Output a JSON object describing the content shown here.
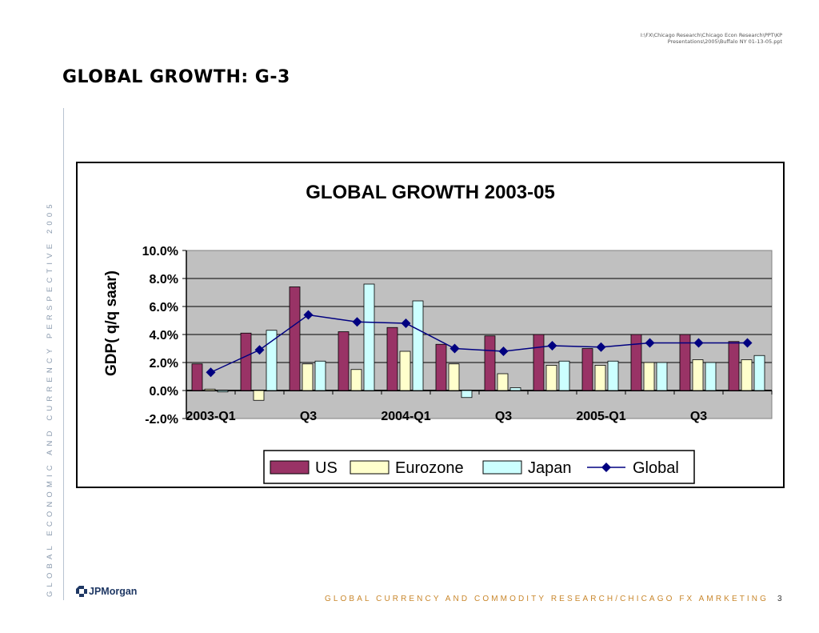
{
  "header": {
    "file_path": "I:\\FX\\Chicago Research\\Chicago Econ Research\\PPT\\KP Presentations\\2005\\Buffalo NY 01-13-05.ppt",
    "slide_title": "GLOBAL GROWTH: G-3"
  },
  "sidebar": {
    "vertical_text": "GLOBAL ECONOMIC AND CURRENCY PERSPECTIVE 2005"
  },
  "footer": {
    "logo_text": "JPMorgan",
    "tagline": "GLOBAL CURRENCY AND COMMODITY RESEARCH/CHICAGO FX AMRKETING",
    "page_number": "3"
  },
  "colors": {
    "us": "#993366",
    "eurozone": "#ffffcc",
    "japan": "#ccffff",
    "global": "#000080",
    "plot_bg": "#c0c0c0",
    "footer_text": "#c9872c"
  },
  "chart_data": {
    "type": "bar",
    "title": "GLOBAL GROWTH 2003-05",
    "ylabel": "GDP( q/q saar)",
    "xlabel": "",
    "ylim": [
      -2.0,
      10.0
    ],
    "yticks": [
      "10.0%",
      "8.0%",
      "6.0%",
      "4.0%",
      "2.0%",
      "0.0%",
      "-2.0%"
    ],
    "x_tick_labels": [
      "2003-Q1",
      "",
      "Q3",
      "",
      "2004-Q1",
      "",
      "Q3",
      "",
      "2005-Q1",
      "",
      "Q3",
      ""
    ],
    "grid": true,
    "legend_position": "bottom",
    "series": [
      {
        "name": "US",
        "type": "bar",
        "values": [
          1.9,
          4.1,
          7.4,
          4.2,
          4.5,
          3.3,
          3.9,
          4.0,
          3.0,
          4.0,
          4.0,
          3.5
        ]
      },
      {
        "name": "Eurozone",
        "type": "bar",
        "values": [
          0.1,
          -0.7,
          1.9,
          1.5,
          2.8,
          1.9,
          1.2,
          1.8,
          1.8,
          2.0,
          2.2,
          2.2
        ]
      },
      {
        "name": "Japan",
        "type": "bar",
        "values": [
          -0.1,
          4.3,
          2.1,
          7.6,
          6.4,
          -0.5,
          0.2,
          2.1,
          2.1,
          2.0,
          2.0,
          2.5
        ]
      },
      {
        "name": "Global",
        "type": "line",
        "values": [
          1.3,
          2.9,
          5.4,
          4.9,
          4.8,
          3.0,
          2.8,
          3.2,
          3.1,
          3.4,
          3.4,
          3.4
        ]
      }
    ]
  }
}
